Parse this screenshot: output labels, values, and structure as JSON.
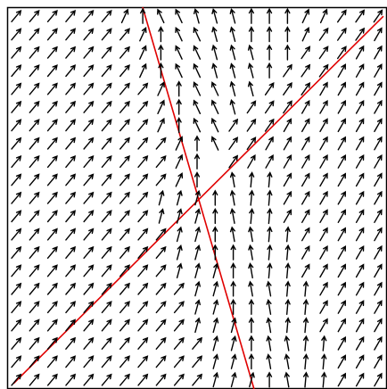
{
  "chart_data": {
    "type": "quiver",
    "xlim": [
      -0.5,
      20.5
    ],
    "ylim": [
      -0.5,
      20.5
    ],
    "lines": [
      {
        "color": "#e00000",
        "x": [
          6.99,
          13.15
        ],
        "y": [
          20.5,
          -0.5
        ]
      },
      {
        "color": "#e00000",
        "x": [
          -0.15,
          20.3
        ],
        "y": [
          -0.2,
          20.0
        ]
      }
    ],
    "arrow_color": "#000000",
    "angles": [
      [
        50,
        50,
        50,
        50,
        50,
        50,
        65,
        90,
        115,
        115,
        105,
        105,
        105,
        90,
        90,
        90,
        65,
        65,
        55,
        55,
        55
      ],
      [
        50,
        50,
        50,
        50,
        50,
        50,
        50,
        65,
        90,
        115,
        115,
        105,
        105,
        90,
        90,
        90,
        65,
        55,
        55,
        55,
        60
      ],
      [
        50,
        50,
        50,
        50,
        50,
        50,
        50,
        65,
        90,
        115,
        115,
        105,
        105,
        105,
        90,
        90,
        55,
        55,
        55,
        60,
        60
      ],
      [
        50,
        50,
        50,
        50,
        50,
        50,
        50,
        65,
        90,
        115,
        115,
        105,
        105,
        105,
        90,
        55,
        55,
        55,
        60,
        60,
        60
      ],
      [
        50,
        50,
        50,
        50,
        50,
        50,
        50,
        50,
        65,
        90,
        115,
        115,
        105,
        105,
        55,
        55,
        55,
        60,
        60,
        60,
        60
      ],
      [
        50,
        50,
        50,
        50,
        50,
        50,
        50,
        50,
        65,
        90,
        115,
        115,
        105,
        55,
        55,
        55,
        60,
        60,
        60,
        60,
        60
      ],
      [
        50,
        50,
        50,
        50,
        50,
        50,
        50,
        50,
        65,
        90,
        115,
        115,
        55,
        55,
        55,
        60,
        60,
        60,
        60,
        60,
        60
      ],
      [
        50,
        50,
        50,
        50,
        50,
        50,
        50,
        50,
        50,
        65,
        90,
        115,
        55,
        55,
        60,
        60,
        60,
        60,
        60,
        60,
        60
      ],
      [
        50,
        50,
        50,
        50,
        50,
        50,
        50,
        50,
        50,
        65,
        90,
        null,
        55,
        60,
        60,
        60,
        60,
        60,
        60,
        60,
        60
      ],
      [
        50,
        50,
        50,
        50,
        50,
        50,
        50,
        50,
        50,
        65,
        90,
        null,
        100,
        85,
        85,
        60,
        60,
        60,
        60,
        60,
        60
      ],
      [
        50,
        50,
        50,
        50,
        50,
        50,
        50,
        50,
        75,
        75,
        75,
        90,
        100,
        85,
        85,
        60,
        60,
        60,
        60,
        60,
        60
      ],
      [
        50,
        50,
        50,
        50,
        50,
        50,
        50,
        50,
        75,
        75,
        75,
        90,
        100,
        85,
        85,
        60,
        60,
        60,
        60,
        60,
        60
      ],
      [
        50,
        50,
        50,
        50,
        50,
        50,
        50,
        50,
        50,
        75,
        75,
        90,
        100,
        100,
        85,
        85,
        60,
        60,
        60,
        60,
        60
      ],
      [
        50,
        50,
        50,
        50,
        50,
        50,
        50,
        50,
        50,
        75,
        75,
        90,
        90,
        100,
        85,
        85,
        60,
        60,
        60,
        60,
        60
      ],
      [
        50,
        50,
        50,
        50,
        50,
        50,
        50,
        50,
        50,
        75,
        75,
        75,
        90,
        100,
        85,
        85,
        60,
        60,
        60,
        60,
        60
      ],
      [
        50,
        50,
        50,
        50,
        50,
        50,
        50,
        50,
        50,
        50,
        75,
        75,
        90,
        100,
        100,
        85,
        85,
        60,
        60,
        60,
        60
      ],
      [
        50,
        50,
        50,
        50,
        50,
        50,
        50,
        50,
        50,
        50,
        75,
        75,
        90,
        90,
        100,
        85,
        85,
        60,
        60,
        60,
        60
      ],
      [
        50,
        50,
        50,
        50,
        50,
        50,
        50,
        50,
        50,
        50,
        75,
        75,
        75,
        90,
        100,
        85,
        85,
        60,
        60,
        60,
        60
      ],
      [
        50,
        50,
        50,
        50,
        50,
        50,
        50,
        50,
        50,
        50,
        50,
        75,
        75,
        90,
        100,
        100,
        85,
        85,
        60,
        60,
        60
      ],
      [
        50,
        50,
        50,
        50,
        50,
        50,
        50,
        50,
        50,
        50,
        50,
        75,
        75,
        90,
        100,
        100,
        85,
        85,
        60,
        60,
        60
      ],
      [
        50,
        50,
        50,
        50,
        50,
        50,
        50,
        50,
        50,
        50,
        50,
        75,
        75,
        75,
        90,
        100,
        85,
        85,
        60,
        60,
        60
      ]
    ]
  }
}
